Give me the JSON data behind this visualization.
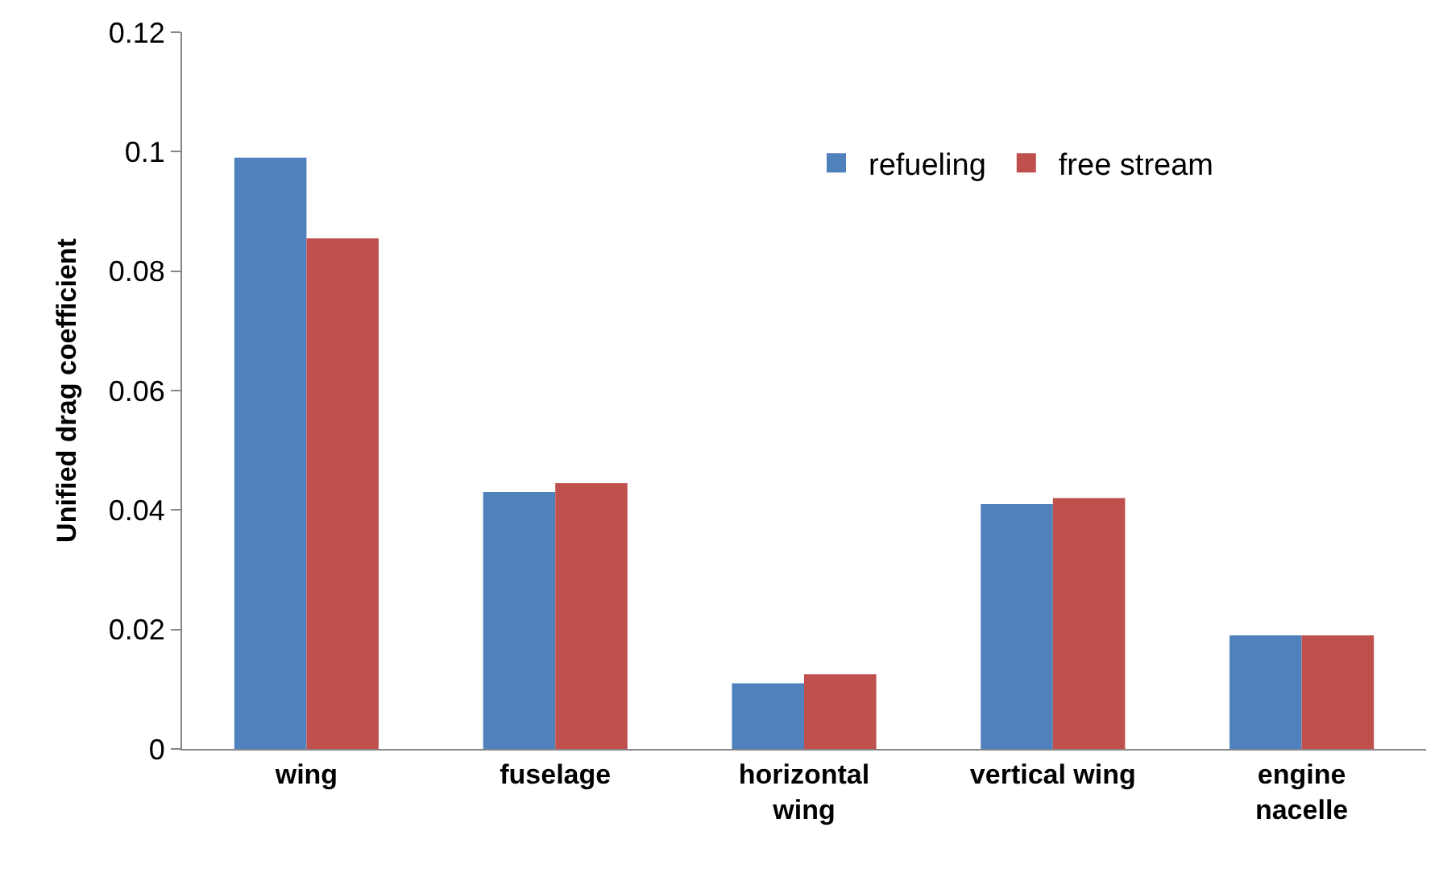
{
  "chart_data": {
    "type": "bar",
    "ylabel": "Unified drag coefficient",
    "categories": [
      "wing",
      "fuselage",
      "horizontal\nwing",
      "vertical wing",
      "engine\nnacelle"
    ],
    "series": [
      {
        "name": "refueling",
        "color": "#4f81bd",
        "values": [
          0.099,
          0.043,
          0.011,
          0.041,
          0.019
        ]
      },
      {
        "name": "free stream",
        "color": "#c0504d",
        "values": [
          0.0855,
          0.0445,
          0.0125,
          0.042,
          0.019
        ]
      }
    ],
    "ylim": [
      0,
      0.12
    ],
    "yticks": [
      0,
      0.02,
      0.04,
      0.06,
      0.08,
      0.1,
      0.12
    ],
    "legend": "top right"
  }
}
